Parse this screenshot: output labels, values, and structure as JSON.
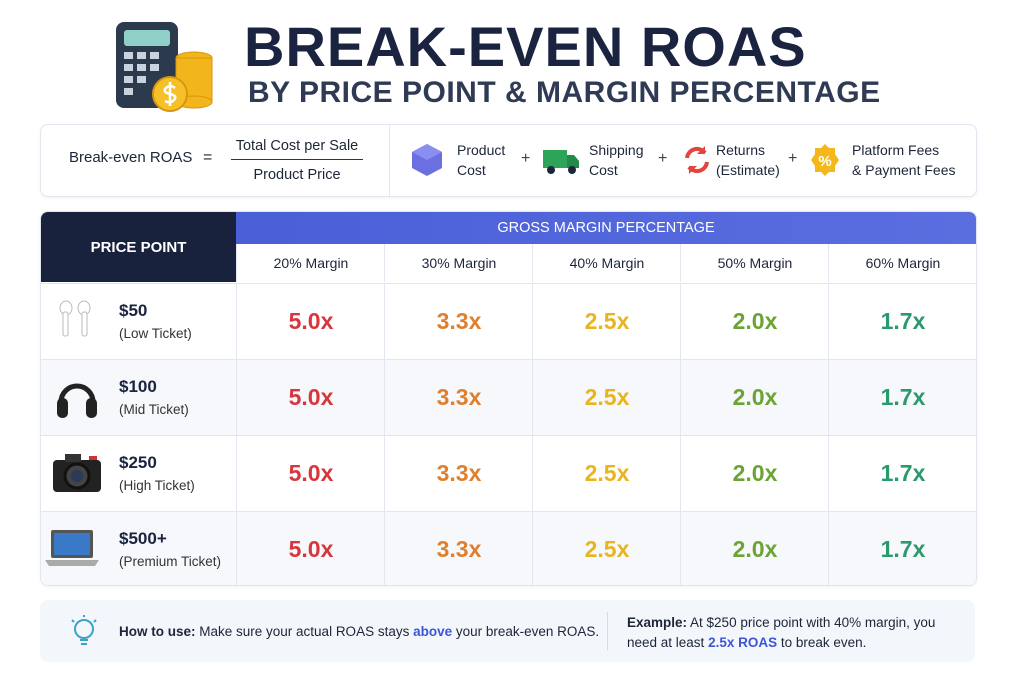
{
  "header": {
    "title": "BREAK-EVEN ROAS",
    "subtitle": "BY PRICE POINT & MARGIN PERCENTAGE"
  },
  "formula": {
    "label": "Break-even ROAS",
    "equals": "=",
    "numerator": "Total Cost per Sale",
    "denominator": "Product Price",
    "components": [
      {
        "lines": [
          "Product",
          "Cost"
        ]
      },
      {
        "lines": [
          "Shipping",
          "Cost"
        ]
      },
      {
        "lines": [
          "Returns",
          "(Estimate)"
        ]
      },
      {
        "lines": [
          "Platform Fees",
          "& Payment Fees"
        ]
      }
    ],
    "operator": "+"
  },
  "table": {
    "corner": "PRICE POINT",
    "group_header": "GROSS MARGIN PERCENTAGE",
    "columns": [
      "20% Margin",
      "30% Margin",
      "40% Margin",
      "50% Margin",
      "60% Margin"
    ],
    "rows": [
      {
        "price": "$50",
        "tier": "(Low Ticket)",
        "values": [
          "5.0x",
          "3.3x",
          "2.5x",
          "2.0x",
          "1.7x"
        ]
      },
      {
        "price": "$100",
        "tier": "(Mid Ticket)",
        "values": [
          "5.0x",
          "3.3x",
          "2.5x",
          "2.0x",
          "1.7x"
        ]
      },
      {
        "price": "$250",
        "tier": "(High Ticket)",
        "values": [
          "5.0x",
          "3.3x",
          "2.5x",
          "2.0x",
          "1.7x"
        ]
      },
      {
        "price": "$500+",
        "tier": "(Premium Ticket)",
        "values": [
          "5.0x",
          "3.3x",
          "2.5x",
          "2.0x",
          "1.7x"
        ]
      }
    ]
  },
  "footer": {
    "how_to": {
      "lead": "How to use:",
      "text1": " Make sure your actual ROAS stays ",
      "highlight": "above",
      "text2": " your break-even ROAS."
    },
    "example": {
      "lead": "Example:",
      "text1": " At $250 price point with 40% margin, you need at least ",
      "highlight": "2.5x ROAS",
      "text2": " to break even."
    }
  }
}
